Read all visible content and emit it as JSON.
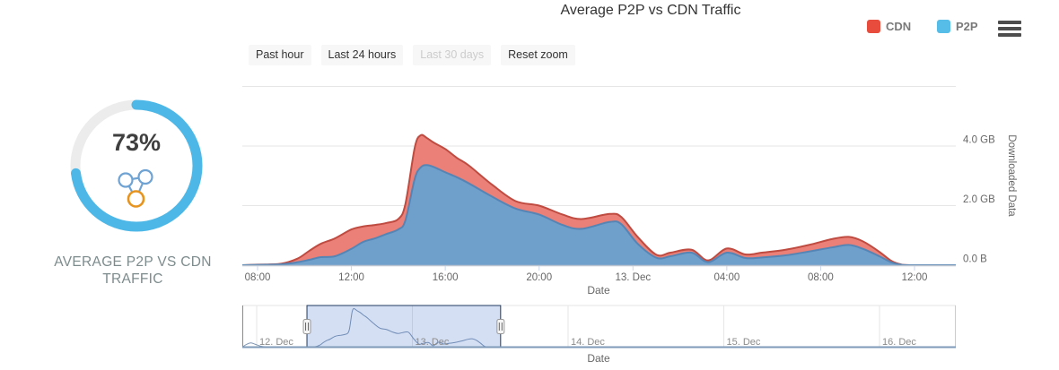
{
  "header": {
    "title": "Average P2P vs CDN Traffic"
  },
  "legend": {
    "items": [
      {
        "label": "CDN",
        "color": "#e74c3c"
      },
      {
        "label": "P2P",
        "color": "#55bde8"
      }
    ]
  },
  "menu": {
    "icon": "hamburger-menu-icon"
  },
  "range_buttons": [
    {
      "label": "Past hour",
      "disabled": false
    },
    {
      "label": "Last 24 hours",
      "disabled": false
    },
    {
      "label": "Last 30 days",
      "disabled": true
    },
    {
      "label": "Reset zoom",
      "disabled": false
    }
  ],
  "kpi": {
    "percent_value": 73,
    "percent_label": "73%",
    "caption": "AVERAGE P2P VS CDN TRAFFIC",
    "ring_color": "#4db8e8",
    "track_color": "#ececec",
    "icon": "p2p-network-icon",
    "icon_node_color": "#6fa3d3",
    "icon_hub_color": "#e6941e"
  },
  "chart_data": {
    "type": "area",
    "stacked": true,
    "title": "Average P2P vs CDN Traffic",
    "xlabel": "Date",
    "ylabel": "Downloaded Data",
    "ylim": [
      0,
      6
    ],
    "unit": "GB",
    "x_unit": "hours_since_12_Dec_00:00",
    "x": [
      7.35,
      8,
      9,
      9.7,
      10.2,
      10.7,
      11.3,
      12,
      12.5,
      13,
      13.5,
      14,
      14.3,
      14.7,
      14.95,
      15.2,
      15.5,
      16,
      16.5,
      17,
      18,
      19,
      20,
      21,
      21.8,
      23,
      23.5,
      24.2,
      25,
      25.6,
      26.5,
      27.2,
      28,
      28.8,
      29.5,
      30.5,
      31.5,
      32.5,
      33.2,
      33.8,
      34.5,
      35,
      35.4,
      35.8,
      37.76
    ],
    "series": [
      {
        "name": "P2P",
        "fill": "#6f9fcb",
        "line": "#5585b5",
        "values": [
          0,
          0.01,
          0.03,
          0.1,
          0.18,
          0.27,
          0.3,
          0.55,
          0.78,
          0.9,
          1.05,
          1.2,
          1.5,
          2.9,
          3.28,
          3.36,
          3.3,
          3.12,
          2.95,
          2.75,
          2.3,
          1.9,
          1.7,
          1.35,
          1.22,
          1.45,
          1.38,
          0.72,
          0.25,
          0.3,
          0.42,
          0.1,
          0.42,
          0.24,
          0.26,
          0.33,
          0.46,
          0.6,
          0.68,
          0.55,
          0.3,
          0.1,
          0.02,
          0,
          0
        ]
      },
      {
        "name": "CDN",
        "fill": "#ea8077",
        "line": "#bf4b41",
        "values": [
          0,
          0.01,
          0.02,
          0.12,
          0.3,
          0.45,
          0.6,
          0.65,
          0.52,
          0.45,
          0.37,
          0.35,
          0.55,
          1.05,
          1.08,
          0.92,
          0.82,
          0.78,
          0.65,
          0.6,
          0.4,
          0.25,
          0.3,
          0.35,
          0.33,
          0.27,
          0.24,
          0.23,
          0.1,
          0.12,
          0.1,
          0.06,
          0.14,
          0.12,
          0.16,
          0.19,
          0.22,
          0.28,
          0.27,
          0.25,
          0.15,
          0.05,
          0.01,
          0,
          0
        ]
      }
    ],
    "y_ticks": [
      {
        "v": 0,
        "label": "0.0 B"
      },
      {
        "v": 2,
        "label": "2.0 GB"
      },
      {
        "v": 4,
        "label": "4.0 GB"
      }
    ],
    "y_gridlines": [
      2,
      4,
      6
    ],
    "x_ticks": [
      {
        "t": 8,
        "label": "08:00"
      },
      {
        "t": 12,
        "label": "12:00"
      },
      {
        "t": 16,
        "label": "16:00"
      },
      {
        "t": 20,
        "label": "20:00"
      },
      {
        "t": 24,
        "label": "13. Dec"
      },
      {
        "t": 28,
        "label": "04:00"
      },
      {
        "t": 32,
        "label": "08:00"
      },
      {
        "t": 36,
        "label": "12:00"
      }
    ],
    "navigator": {
      "xlabel": "Date",
      "x_ticks": [
        {
          "t": 0,
          "label": "12. Dec"
        },
        {
          "t": 24,
          "label": "13. Dec"
        },
        {
          "t": 48,
          "label": "14. Dec"
        },
        {
          "t": 72,
          "label": "15. Dec"
        },
        {
          "t": 96,
          "label": "16. Dec"
        }
      ],
      "prefix_x": [
        -2.2,
        -1.6,
        -0.9,
        -0.2,
        0.6,
        1.5,
        3,
        5,
        7
      ],
      "prefix_v": [
        0.02,
        0.3,
        0.48,
        0.32,
        0.12,
        0.04,
        0.02,
        0.01,
        0.01
      ],
      "suffix_x": [
        38,
        107.8
      ],
      "suffix_v": [
        0,
        0
      ],
      "selection": {
        "start_t": 7.75,
        "end_t": 37.6
      }
    }
  }
}
